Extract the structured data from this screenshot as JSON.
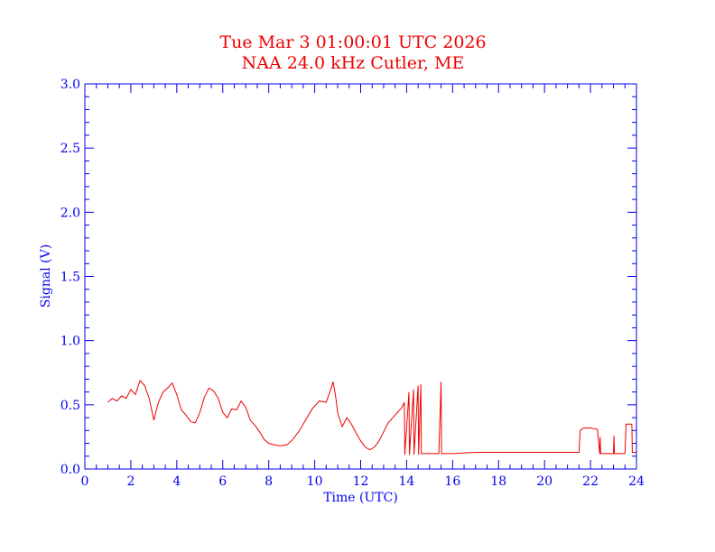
{
  "chart_data": {
    "type": "line",
    "title": "Tue Mar 3 01:00:01 UTC 2026",
    "subtitle": "NAA 24.0 kHz Cutler, ME",
    "xlabel": "Time (UTC)",
    "ylabel": "Signal (V)",
    "xlim": [
      0,
      24
    ],
    "ylim": [
      0,
      3.0
    ],
    "x_ticks": [
      "0",
      "2",
      "4",
      "6",
      "8",
      "10",
      "12",
      "14",
      "16",
      "18",
      "20",
      "22",
      "24"
    ],
    "y_ticks": [
      "0.0",
      "0.5",
      "1.0",
      "1.5",
      "2.0",
      "2.5",
      "3.0"
    ],
    "grid": false,
    "colors": {
      "axes": "#0000ee",
      "title": "#ee0000",
      "series": "#ee0000"
    },
    "series": [
      {
        "x": [
          1.0,
          1.2,
          1.4,
          1.6,
          1.8,
          2.0,
          2.2,
          2.4,
          2.6,
          2.8,
          3.0,
          3.2,
          3.4,
          3.6,
          3.8,
          4.0,
          4.2,
          4.4,
          4.6,
          4.8,
          5.0,
          5.2,
          5.4,
          5.6,
          5.8,
          6.0,
          6.2,
          6.4,
          6.6,
          6.8,
          7.0,
          7.2,
          7.4,
          7.6,
          7.8,
          8.0,
          8.2,
          8.5,
          8.8,
          9.0,
          9.3,
          9.6,
          9.9,
          10.2,
          10.5,
          10.7,
          10.8,
          10.9,
          11.0,
          11.2,
          11.4,
          11.6,
          11.8,
          12.0,
          12.2,
          12.4,
          12.6,
          12.8,
          13.0,
          13.2,
          13.5,
          13.8,
          13.9,
          13.92,
          14.1,
          14.12,
          14.3,
          14.32,
          14.5,
          14.52,
          14.62,
          14.64,
          14.8,
          15.0,
          15.2,
          15.4,
          15.5,
          15.52,
          15.54,
          15.6,
          16.0,
          17.0,
          18.0,
          19.0,
          20.0,
          21.0,
          21.5,
          21.55,
          21.7,
          22.0,
          22.3,
          22.4,
          22.42,
          22.44,
          22.5,
          23.0,
          23.02,
          23.04,
          23.1,
          23.5,
          23.55,
          23.8,
          23.82,
          24.0
        ],
        "values": [
          0.52,
          0.55,
          0.53,
          0.57,
          0.55,
          0.62,
          0.58,
          0.69,
          0.65,
          0.55,
          0.38,
          0.52,
          0.6,
          0.63,
          0.67,
          0.58,
          0.46,
          0.42,
          0.37,
          0.36,
          0.44,
          0.56,
          0.63,
          0.61,
          0.55,
          0.44,
          0.4,
          0.47,
          0.46,
          0.53,
          0.48,
          0.38,
          0.34,
          0.29,
          0.23,
          0.2,
          0.19,
          0.18,
          0.19,
          0.22,
          0.29,
          0.38,
          0.47,
          0.53,
          0.52,
          0.62,
          0.68,
          0.58,
          0.44,
          0.33,
          0.4,
          0.35,
          0.28,
          0.22,
          0.17,
          0.15,
          0.17,
          0.22,
          0.29,
          0.36,
          0.42,
          0.48,
          0.52,
          0.11,
          0.6,
          0.11,
          0.62,
          0.11,
          0.65,
          0.11,
          0.66,
          0.12,
          0.12,
          0.12,
          0.12,
          0.12,
          0.68,
          0.12,
          0.12,
          0.12,
          0.12,
          0.13,
          0.13,
          0.13,
          0.13,
          0.13,
          0.13,
          0.3,
          0.32,
          0.32,
          0.31,
          0.12,
          0.25,
          0.12,
          0.12,
          0.12,
          0.26,
          0.12,
          0.12,
          0.12,
          0.35,
          0.35,
          0.13,
          0.13
        ]
      }
    ]
  }
}
